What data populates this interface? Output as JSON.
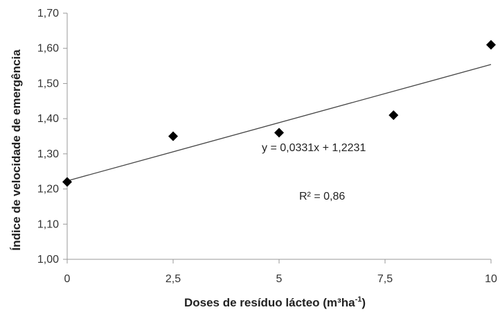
{
  "chart_data": {
    "type": "scatter",
    "xlabel_main": "Doses de resíduo lácteo (m³ha",
    "xlabel_sup": "-1",
    "xlabel_close": ")",
    "ylabel": "Índice de velocidade de emergência",
    "xlim": [
      0,
      10
    ],
    "ylim": [
      1.0,
      1.7
    ],
    "x_ticks": [
      0,
      2.5,
      5,
      7.5,
      10
    ],
    "x_tick_labels": [
      "0",
      "2,5",
      "5",
      "7,5",
      "10"
    ],
    "y_ticks": [
      1.0,
      1.1,
      1.2,
      1.3,
      1.4,
      1.5,
      1.6,
      1.7
    ],
    "y_tick_labels": [
      "1,00",
      "1,10",
      "1,20",
      "1,30",
      "1,40",
      "1,50",
      "1,60",
      "1,70"
    ],
    "grid": false,
    "points": [
      {
        "x": 0,
        "y": 1.22
      },
      {
        "x": 2.5,
        "y": 1.35
      },
      {
        "x": 5,
        "y": 1.36
      },
      {
        "x": 7.7,
        "y": 1.41
      },
      {
        "x": 10,
        "y": 1.61
      }
    ],
    "trendline": {
      "slope": 0.0331,
      "intercept": 1.2231
    },
    "equation": "y = 0,0331x + 1,2231",
    "r2": "R² = 0,86",
    "colors": {
      "marker": "#000000",
      "trendline": "#444444",
      "axis": "#999999"
    }
  }
}
